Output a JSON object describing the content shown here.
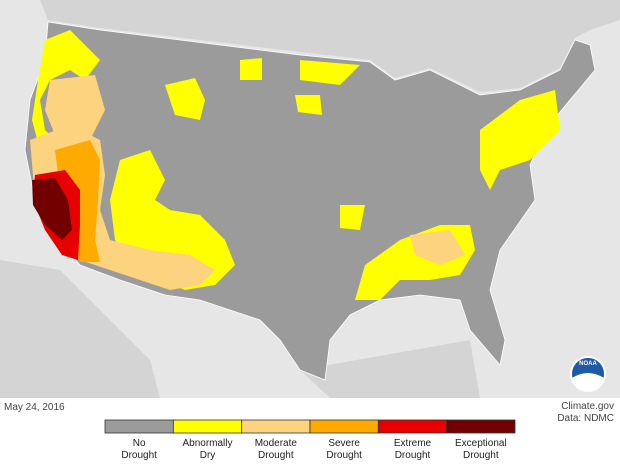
{
  "date": "May 24, 2016",
  "credit": [
    "Climate.gov",
    "Data: NDMC"
  ],
  "logo": "NOAA",
  "legend": [
    {
      "label": [
        "No",
        "Drought"
      ],
      "color": "#9b9b9b"
    },
    {
      "label": [
        "Abnormally",
        "Dry"
      ],
      "color": "#ffff00"
    },
    {
      "label": [
        "Moderate",
        "Drought"
      ],
      "color": "#fcd37f"
    },
    {
      "label": [
        "Severe",
        "Drought"
      ],
      "color": "#ffaa00"
    },
    {
      "label": [
        "Extreme",
        "Drought"
      ],
      "color": "#e60000"
    },
    {
      "label": [
        "Exceptional",
        "Drought"
      ],
      "color": "#730000"
    }
  ]
}
